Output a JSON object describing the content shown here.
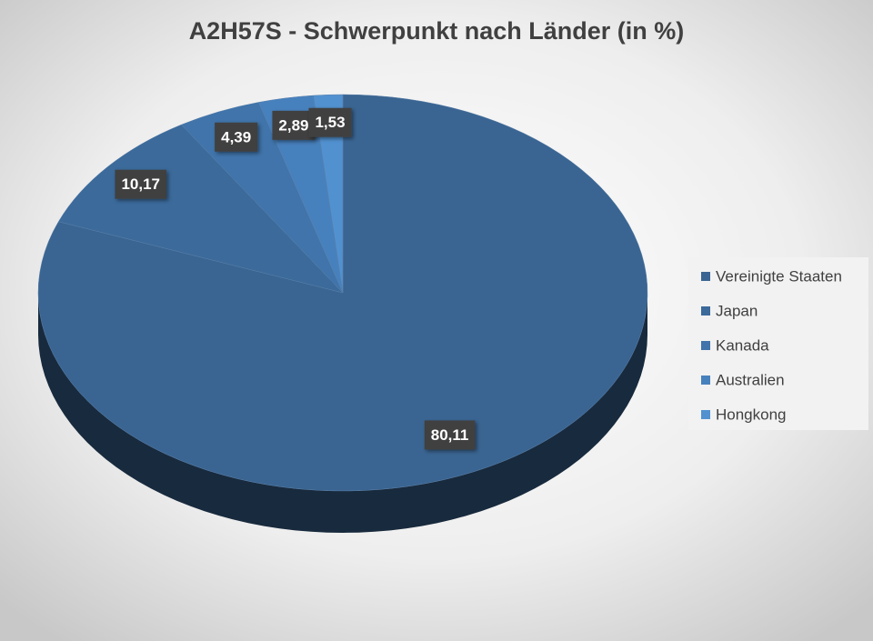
{
  "chart_data": {
    "type": "pie",
    "title": "A2H57S - Schwerpunkt nach Länder (in %)",
    "categories": [
      "Vereinigte Staaten",
      "Japan",
      "Kanada",
      "Australien",
      "Hongkong"
    ],
    "values": [
      80.11,
      10.17,
      4.39,
      2.89,
      1.53
    ],
    "value_labels": [
      "80,11",
      "10,17",
      "4,39",
      "2,89",
      "1,53"
    ],
    "colors": [
      "#3a6592",
      "#3b6a9b",
      "#4074aa",
      "#4781bd",
      "#5191d0"
    ],
    "legend": "right"
  }
}
